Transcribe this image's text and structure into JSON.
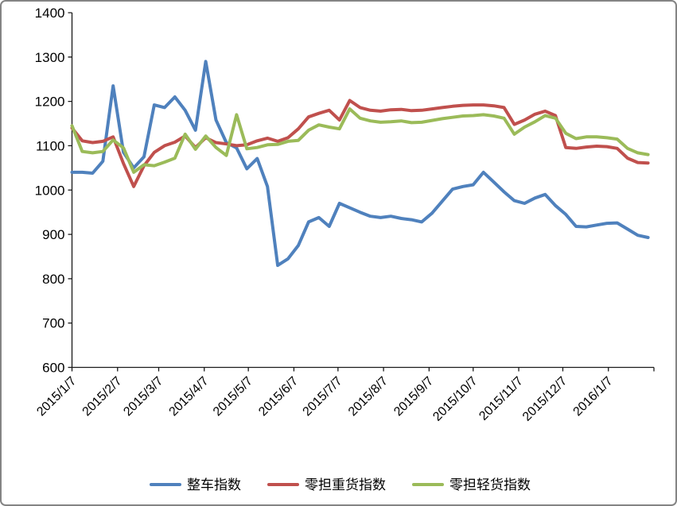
{
  "frame": {
    "border_color": "#848484",
    "background": "#ffffff",
    "text_color": "#000000"
  },
  "chart_data": {
    "type": "line",
    "title": "",
    "xlabel": "",
    "ylabel": "",
    "grid": false,
    "legend_position": "bottom",
    "line_width": 4,
    "y_axis": {
      "min": 600,
      "max": 1400,
      "step": 100,
      "tick_labels": [
        "600",
        "700",
        "800",
        "900",
        "1000",
        "1100",
        "1200",
        "1300",
        "1400"
      ]
    },
    "x_axis": {
      "start": "2015/1/7",
      "end": "2016/2/7",
      "label_rotation": -45,
      "tick_labels": [
        "2015/1/7",
        "2015/2/7",
        "2015/3/7",
        "2015/4/7",
        "2015/5/7",
        "2015/6/7",
        "2015/7/7",
        "2015/8/7",
        "2015/9/7",
        "2015/10/7",
        "2015/11/7",
        "2015/12/7",
        "2016/1/7"
      ]
    },
    "dates": [
      "2015/1/7",
      "2015/1/14",
      "2015/1/21",
      "2015/1/28",
      "2015/2/4",
      "2015/2/11",
      "2015/2/18",
      "2015/2/25",
      "2015/3/4",
      "2015/3/11",
      "2015/3/18",
      "2015/3/25",
      "2015/4/1",
      "2015/4/8",
      "2015/4/15",
      "2015/4/22",
      "2015/4/29",
      "2015/5/6",
      "2015/5/13",
      "2015/5/20",
      "2015/5/27",
      "2015/6/3",
      "2015/6/10",
      "2015/6/17",
      "2015/6/24",
      "2015/7/1",
      "2015/7/8",
      "2015/7/15",
      "2015/7/22",
      "2015/7/29",
      "2015/8/5",
      "2015/8/12",
      "2015/8/19",
      "2015/8/26",
      "2015/9/2",
      "2015/9/9",
      "2015/9/16",
      "2015/9/23",
      "2015/9/30",
      "2015/10/7",
      "2015/10/14",
      "2015/10/21",
      "2015/10/28",
      "2015/11/4",
      "2015/11/11",
      "2015/11/18",
      "2015/11/25",
      "2015/12/2",
      "2015/12/9",
      "2015/12/16",
      "2015/12/23",
      "2015/12/30",
      "2016/1/6",
      "2016/1/13",
      "2016/1/20",
      "2016/1/27",
      "2016/2/3"
    ],
    "series": [
      {
        "name": "整车指数",
        "color": "#4F81BD",
        "values": [
          1040,
          1040,
          1038,
          1065,
          1235,
          1085,
          1050,
          1075,
          1192,
          1186,
          1210,
          1180,
          1135,
          1290,
          1158,
          1107,
          1095,
          1048,
          1071,
          1008,
          830,
          845,
          875,
          928,
          938,
          918,
          970,
          960,
          950,
          941,
          938,
          941,
          936,
          933,
          928,
          948,
          975,
          1002,
          1008,
          1012,
          1040,
          1018,
          996,
          976,
          970,
          982,
          990,
          965,
          945,
          918,
          917,
          921,
          925,
          926,
          912,
          898,
          893
        ]
      },
      {
        "name": "零担重货指数",
        "color": "#C0504D",
        "values": [
          1140,
          1111,
          1107,
          1110,
          1120,
          1060,
          1008,
          1055,
          1085,
          1100,
          1108,
          1122,
          1096,
          1118,
          1107,
          1104,
          1100,
          1102,
          1111,
          1117,
          1110,
          1118,
          1138,
          1165,
          1173,
          1180,
          1158,
          1202,
          1186,
          1180,
          1178,
          1181,
          1182,
          1179,
          1180,
          1183,
          1186,
          1189,
          1191,
          1192,
          1192,
          1190,
          1186,
          1148,
          1158,
          1171,
          1178,
          1168,
          1096,
          1094,
          1097,
          1099,
          1098,
          1094,
          1072,
          1062,
          1061
        ]
      },
      {
        "name": "零担轻货指数",
        "color": "#9BBB59",
        "values": [
          1145,
          1087,
          1084,
          1087,
          1113,
          1095,
          1040,
          1057,
          1055,
          1063,
          1072,
          1126,
          1092,
          1122,
          1096,
          1078,
          1170,
          1093,
          1096,
          1102,
          1103,
          1110,
          1112,
          1135,
          1147,
          1142,
          1138,
          1183,
          1162,
          1156,
          1153,
          1154,
          1156,
          1152,
          1153,
          1157,
          1161,
          1164,
          1167,
          1168,
          1170,
          1167,
          1162,
          1126,
          1142,
          1154,
          1168,
          1162,
          1128,
          1116,
          1120,
          1120,
          1118,
          1115,
          1094,
          1084,
          1080
        ]
      }
    ]
  }
}
